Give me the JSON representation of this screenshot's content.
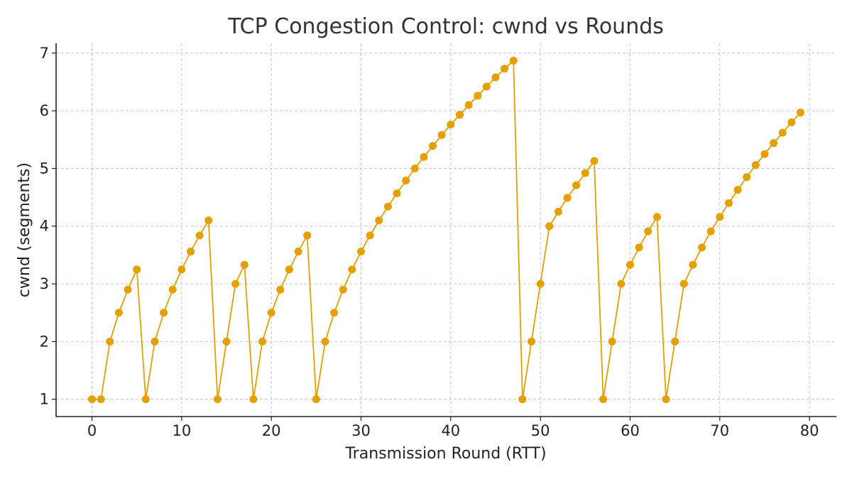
{
  "chart_data": {
    "type": "line",
    "title": "TCP Congestion Control: cwnd vs Rounds",
    "xlabel": "Transmission Round (RTT)",
    "ylabel": "cwnd (segments)",
    "xlim": [
      -4,
      83
    ],
    "ylim": [
      0.7,
      7.17
    ],
    "xticks": [
      0,
      10,
      20,
      30,
      40,
      50,
      60,
      70,
      80
    ],
    "yticks": [
      1,
      2,
      3,
      4,
      5,
      6,
      7
    ],
    "grid": true,
    "marker": "circle",
    "color": "#E69F00",
    "series": [
      {
        "x": [
          0,
          1,
          2,
          3,
          4,
          5,
          6,
          7,
          8,
          9,
          10,
          11,
          12,
          13,
          14,
          15,
          16,
          17,
          18,
          19,
          20,
          21,
          22,
          23,
          24,
          25,
          26,
          27,
          28,
          29,
          30,
          31,
          32,
          33,
          34,
          35,
          36,
          37,
          38,
          39,
          40,
          41,
          42,
          43,
          44,
          45,
          46,
          47,
          48,
          49,
          50,
          51,
          52,
          53,
          54,
          55,
          56,
          57,
          58,
          59,
          60,
          61,
          62,
          63,
          64,
          65,
          66,
          67,
          68,
          69,
          70,
          71,
          72,
          73,
          74,
          75,
          76,
          77,
          78,
          79
        ],
        "values": [
          1,
          1,
          2,
          2.5,
          2.9,
          3.25,
          1,
          2,
          2.5,
          2.9,
          3.25,
          3.56,
          3.84,
          4.1,
          1,
          2,
          3,
          3.33,
          1,
          2,
          2.5,
          2.9,
          3.25,
          3.56,
          3.84,
          1,
          2,
          2.5,
          2.9,
          3.25,
          3.56,
          3.84,
          4.1,
          4.34,
          4.57,
          4.79,
          5.0,
          5.2,
          5.39,
          5.58,
          5.76,
          5.93,
          6.1,
          6.26,
          6.42,
          6.58,
          6.73,
          6.87,
          1,
          2,
          3,
          4,
          4.25,
          4.49,
          4.71,
          4.92,
          5.13,
          1,
          2,
          3,
          3.33,
          3.63,
          3.91,
          4.16,
          1,
          2,
          3,
          3.33,
          3.63,
          3.91,
          4.16,
          4.4,
          4.63,
          4.85,
          5.06,
          5.25,
          5.44,
          5.62,
          5.8,
          5.97
        ]
      }
    ]
  }
}
